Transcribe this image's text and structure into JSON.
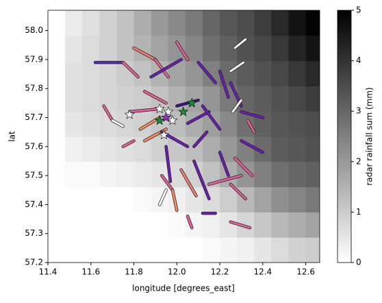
{
  "chart_data": {
    "type": "heatmap",
    "xlabel": "longitude [degrees_east]",
    "ylabel": "lat",
    "colorbar_label": "radar rainfall sum (mm)",
    "xlim": [
      11.4,
      12.665
    ],
    "ylim": [
      57.2,
      58.07
    ],
    "xticks": [
      11.4,
      11.6,
      11.8,
      {
        "value": 12,
        "label": "12.0"
      },
      12.2,
      12.4,
      12.6
    ],
    "yticks": [
      57.2,
      57.3,
      57.4,
      57.5,
      57.6,
      57.7,
      57.8,
      57.9,
      {
        "value": 58,
        "label": "58.0"
      }
    ],
    "clim": [
      0,
      5
    ],
    "cticks": [
      0,
      1,
      2,
      3,
      4,
      5
    ],
    "lon_edges": [
      11.48,
      11.56,
      11.64,
      11.72,
      11.8,
      11.88,
      11.96,
      12.04,
      12.12,
      12.2,
      12.28,
      12.36,
      12.44,
      12.52,
      12.6,
      12.68
    ],
    "lat_edges": [
      57.2,
      57.287,
      57.374,
      57.461,
      57.548,
      57.635,
      57.722,
      57.809,
      57.896,
      57.983,
      58.07
    ],
    "values": [
      [
        0,
        0,
        0,
        0,
        0,
        0,
        0,
        0,
        0.1,
        0.2,
        0.3,
        0.5,
        0.7,
        0.9,
        1.0
      ],
      [
        0,
        0,
        0,
        0,
        0,
        0,
        0.1,
        0.2,
        0.3,
        0.5,
        0.8,
        1.1,
        1.4,
        1.6,
        1.8
      ],
      [
        0,
        0,
        0,
        0,
        0.1,
        0.2,
        0.3,
        0.5,
        0.7,
        1.0,
        1.4,
        1.8,
        2.2,
        2.4,
        2.6
      ],
      [
        0.1,
        0.1,
        0.2,
        0.3,
        0.4,
        0.5,
        0.7,
        0.9,
        1.2,
        1.6,
        2.1,
        2.5,
        2.8,
        3.0,
        3.1
      ],
      [
        0.3,
        0.4,
        0.5,
        0.6,
        0.7,
        0.9,
        1.1,
        1.3,
        1.6,
        2.0,
        2.5,
        2.9,
        3.2,
        3.3,
        3.4
      ],
      [
        0.5,
        0.6,
        0.7,
        0.8,
        0.9,
        1.1,
        1.3,
        1.6,
        1.9,
        2.3,
        2.8,
        3.1,
        3.3,
        3.4,
        3.5
      ],
      [
        0.6,
        0.7,
        0.8,
        0.9,
        1.0,
        1.2,
        1.5,
        1.8,
        2.1,
        2.6,
        3.0,
        3.2,
        3.4,
        3.6,
        3.8
      ],
      [
        0.6,
        0.7,
        0.8,
        1.0,
        1.2,
        1.5,
        1.8,
        2.1,
        2.5,
        2.9,
        3.2,
        3.4,
        3.6,
        3.9,
        4.2
      ],
      [
        0.5,
        0.7,
        0.9,
        1.2,
        1.5,
        1.8,
        2.1,
        2.4,
        2.8,
        3.1,
        3.4,
        3.6,
        3.9,
        4.3,
        4.6
      ],
      [
        0.4,
        0.6,
        0.9,
        1.2,
        1.6,
        2.0,
        2.3,
        2.6,
        3.0,
        3.3,
        3.5,
        3.8,
        4.2,
        4.6,
        4.9
      ]
    ],
    "links": [
      {
        "lon": [
          11.62,
          11.75
        ],
        "lat": [
          57.89,
          57.89
        ],
        "color": "#5a2ba8"
      },
      {
        "lon": [
          11.75,
          11.82
        ],
        "lat": [
          57.89,
          57.84
        ],
        "color": "#e0609a"
      },
      {
        "lon": [
          11.8,
          11.9
        ],
        "lat": [
          57.94,
          57.9
        ],
        "color": "#f07c76"
      },
      {
        "lon": [
          11.9,
          11.96
        ],
        "lat": [
          57.9,
          57.84
        ],
        "color": "#e0609a"
      },
      {
        "lon": [
          11.88,
          12.02
        ],
        "lat": [
          57.84,
          57.9
        ],
        "color": "#6a1fb0"
      },
      {
        "lon": [
          12.0,
          12.05
        ],
        "lat": [
          57.96,
          57.9
        ],
        "color": "#e0609a"
      },
      {
        "lon": [
          12.27,
          12.32
        ],
        "lat": [
          57.94,
          57.97
        ],
        "color": "#ffffff"
      },
      {
        "lon": [
          12.25,
          12.31
        ],
        "lat": [
          57.86,
          57.89
        ],
        "color": "#ffffff"
      },
      {
        "lon": [
          12.2,
          12.24
        ],
        "lat": [
          57.86,
          57.77
        ],
        "color": "#6a1fb0"
      },
      {
        "lon": [
          12.1,
          12.18
        ],
        "lat": [
          57.89,
          57.82
        ],
        "color": "#6a1fb0"
      },
      {
        "lon": [
          11.85,
          11.95
        ],
        "lat": [
          57.79,
          57.75
        ],
        "color": "#e0609a"
      },
      {
        "lon": [
          11.78,
          11.92
        ],
        "lat": [
          57.72,
          57.73
        ],
        "color": "#e0609a"
      },
      {
        "lon": [
          11.66,
          11.7
        ],
        "lat": [
          57.74,
          57.69
        ],
        "color": "#e0609a"
      },
      {
        "lon": [
          11.7,
          11.75
        ],
        "lat": [
          57.69,
          57.67
        ],
        "color": "#ffffff"
      },
      {
        "lon": [
          11.83,
          11.92
        ],
        "lat": [
          57.66,
          57.7
        ],
        "color": "#f58a62"
      },
      {
        "lon": [
          11.85,
          11.95
        ],
        "lat": [
          57.62,
          57.66
        ],
        "color": "#f58a62"
      },
      {
        "lon": [
          11.93,
          12.05
        ],
        "lat": [
          57.65,
          57.6
        ],
        "color": "#6a1fb0"
      },
      {
        "lon": [
          12.0,
          12.1
        ],
        "lat": [
          57.74,
          57.76
        ],
        "color": "#3a1580"
      },
      {
        "lon": [
          12.05,
          12.15
        ],
        "lat": [
          57.68,
          57.72
        ],
        "color": "#6a1fb0"
      },
      {
        "lon": [
          12.12,
          12.2
        ],
        "lat": [
          57.74,
          57.66
        ],
        "color": "#6a1fb0"
      },
      {
        "lon": [
          12.25,
          12.3
        ],
        "lat": [
          57.82,
          57.74
        ],
        "color": "#6a1fb0"
      },
      {
        "lon": [
          12.3,
          12.4
        ],
        "lat": [
          57.72,
          57.7
        ],
        "color": "#6a1fb0"
      },
      {
        "lon": [
          12.33,
          12.36
        ],
        "lat": [
          57.69,
          57.65
        ],
        "color": "#e0609a"
      },
      {
        "lon": [
          12.26,
          12.3
        ],
        "lat": [
          57.72,
          57.76
        ],
        "color": "#ffffff"
      },
      {
        "lon": [
          11.95,
          11.97
        ],
        "lat": [
          57.6,
          57.48
        ],
        "color": "#6a1fb0"
      },
      {
        "lon": [
          11.93,
          11.98
        ],
        "lat": [
          57.5,
          57.45
        ],
        "color": "#e0609a"
      },
      {
        "lon": [
          11.98,
          12.0
        ],
        "lat": [
          57.45,
          57.38
        ],
        "color": "#f58a62"
      },
      {
        "lon": [
          11.95,
          11.92
        ],
        "lat": [
          57.45,
          57.4
        ],
        "color": "#ffffff"
      },
      {
        "lon": [
          12.08,
          12.15
        ],
        "lat": [
          57.55,
          57.42
        ],
        "color": "#6a1fb0"
      },
      {
        "lon": [
          12.2,
          12.24
        ],
        "lat": [
          57.58,
          57.5
        ],
        "color": "#6a1fb0"
      },
      {
        "lon": [
          12.27,
          12.35
        ],
        "lat": [
          57.56,
          57.5
        ],
        "color": "#e0609a"
      },
      {
        "lon": [
          12.25,
          12.32
        ],
        "lat": [
          57.47,
          57.42
        ],
        "color": "#e0609a"
      },
      {
        "lon": [
          12.15,
          12.3
        ],
        "lat": [
          57.47,
          57.5
        ],
        "color": "#e0609a"
      },
      {
        "lon": [
          12.25,
          12.34
        ],
        "lat": [
          57.34,
          57.32
        ],
        "color": "#e0609a"
      },
      {
        "lon": [
          12.12,
          12.18
        ],
        "lat": [
          57.37,
          57.37
        ],
        "color": "#6a1fb0"
      },
      {
        "lon": [
          12.05,
          12.07
        ],
        "lat": [
          57.36,
          57.32
        ],
        "color": "#e0609a"
      },
      {
        "lon": [
          11.75,
          11.8
        ],
        "lat": [
          57.6,
          57.62
        ],
        "color": "#e0609a"
      },
      {
        "lon": [
          12.3,
          12.4
        ],
        "lat": [
          57.62,
          57.58
        ],
        "color": "#6a1fb0"
      },
      {
        "lon": [
          12.08,
          12.14
        ],
        "lat": [
          57.6,
          57.65
        ],
        "color": "#6a1fb0"
      },
      {
        "lon": [
          12.02,
          12.09
        ],
        "lat": [
          57.52,
          57.43
        ],
        "color": "#f07c76"
      }
    ],
    "gauges": [
      {
        "lon": 11.78,
        "lat": 57.71,
        "color": "#ffffff"
      },
      {
        "lon": 11.92,
        "lat": 57.73,
        "color": "#ffffff"
      },
      {
        "lon": 11.96,
        "lat": 57.72,
        "color": "#ffffff"
      },
      {
        "lon": 11.94,
        "lat": 57.64,
        "color": "#ffffff"
      },
      {
        "lon": 11.98,
        "lat": 57.69,
        "color": "#ffffff"
      },
      {
        "lon": 12.07,
        "lat": 57.75,
        "color": "#1a8a3a"
      },
      {
        "lon": 11.92,
        "lat": 57.69,
        "color": "#1a8a3a"
      },
      {
        "lon": 11.95,
        "lat": 57.7,
        "color": "#9b30c0"
      },
      {
        "lon": 12.03,
        "lat": 57.72,
        "color": "#1a8a3a"
      }
    ]
  }
}
